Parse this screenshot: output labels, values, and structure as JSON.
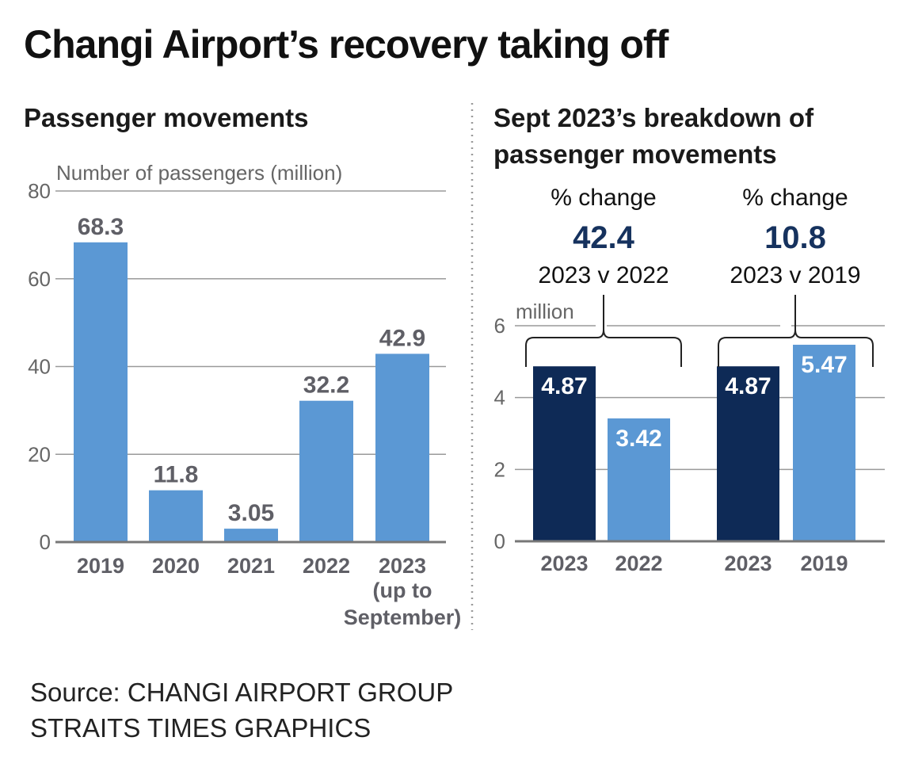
{
  "title": "Changi Airport’s recovery taking off",
  "source_line1": "Source: CHANGI AIRPORT GROUP",
  "source_line2": "STRAITS TIMES GRAPHICS",
  "colors": {
    "light_bar": "#5b98d4",
    "dark_bar": "#0e2a56",
    "grid": "#9a9a9a",
    "accent_text": "#16325e"
  },
  "chart_data": [
    {
      "type": "bar",
      "title": "Passenger movements",
      "ylabel": "Number of passengers (million)",
      "categories": [
        "2019",
        "2020",
        "2021",
        "2022",
        "2023"
      ],
      "category_notes": [
        "",
        "",
        "",
        "",
        "(up to September)"
      ],
      "category_note_lines": [
        "(up to",
        "September)"
      ],
      "values": [
        68.3,
        11.8,
        3.05,
        32.2,
        42.9
      ],
      "value_labels": [
        "68.3",
        "11.8",
        "3.05",
        "32.2",
        "42.9"
      ],
      "ylim": [
        0,
        80
      ],
      "yticks": [
        "0",
        "20",
        "40",
        "60",
        "80"
      ],
      "grid": true
    },
    {
      "type": "bar",
      "title_line1": "Sept 2023’s breakdown of",
      "title_line2": "passenger movements",
      "ylabel": "million",
      "categories": [
        "2023",
        "2022",
        "2023",
        "2019"
      ],
      "values": [
        4.87,
        3.42,
        4.87,
        5.47
      ],
      "value_labels": [
        "4.87",
        "3.42",
        "4.87",
        "5.47"
      ],
      "bar_colors": [
        "#0e2a56",
        "#5b98d4",
        "#0e2a56",
        "#5b98d4"
      ],
      "ylim": [
        0,
        6
      ],
      "yticks": [
        "0",
        "2",
        "4",
        "6"
      ],
      "grid": true,
      "comparisons": [
        {
          "label": "% change",
          "value": "42.4",
          "caption": "2023 v 2022"
        },
        {
          "label": "% change",
          "value": "10.8",
          "caption": "2023 v 2019"
        }
      ]
    }
  ]
}
